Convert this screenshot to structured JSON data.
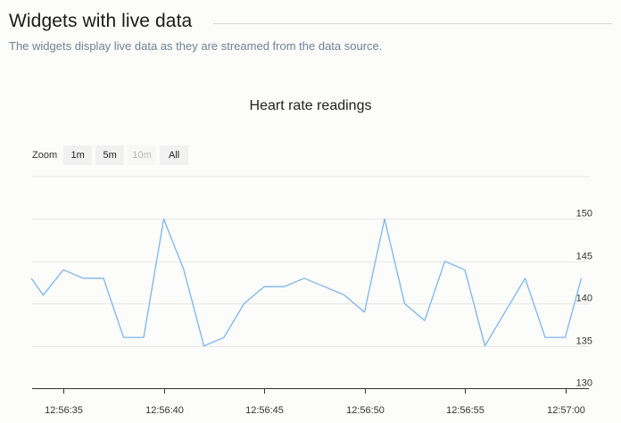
{
  "header": {
    "title": "Widgets with live data",
    "subtitle": "The widgets display live data as they are streamed from the data source."
  },
  "zoom": {
    "label": "Zoom",
    "buttons": [
      {
        "label": "1m",
        "enabled": true
      },
      {
        "label": "5m",
        "enabled": true
      },
      {
        "label": "10m",
        "enabled": false
      },
      {
        "label": "All",
        "enabled": true
      }
    ]
  },
  "chart_data": {
    "type": "line",
    "title": "Heart rate readings",
    "xlabel": "",
    "ylabel": "",
    "ylim": [
      130,
      155
    ],
    "yticks": [
      130,
      135,
      140,
      145,
      150
    ],
    "xticks": [
      "12:56:35",
      "12:56:40",
      "12:56:45",
      "12:56:50",
      "12:56:55",
      "12:57:00"
    ],
    "grid": true,
    "y_axis_side": "right",
    "x": [
      "12:56:33.4",
      "12:56:34.0",
      "12:56:35.0",
      "12:56:36.0",
      "12:56:37.0",
      "12:56:38.0",
      "12:56:39.0",
      "12:56:40.0",
      "12:56:41.0",
      "12:56:42.0",
      "12:56:43.0",
      "12:56:44.0",
      "12:56:45.0",
      "12:56:46.0",
      "12:56:47.0",
      "12:56:48.0",
      "12:56:49.0",
      "12:56:50.0",
      "12:56:51.0",
      "12:56:52.0",
      "12:56:53.0",
      "12:56:54.0",
      "12:56:55.0",
      "12:56:56.0",
      "12:56:57.0",
      "12:56:58.0",
      "12:56:59.0",
      "12:57:00.0",
      "12:57:00.8"
    ],
    "series": [
      {
        "name": "",
        "color": "#7cb5ec",
        "values": [
          143,
          141,
          144,
          143,
          143,
          136,
          136,
          150,
          144,
          135,
          136,
          140,
          142,
          142,
          143,
          142,
          141,
          139,
          150,
          140,
          138,
          145,
          144,
          135,
          139,
          143,
          136,
          136,
          143
        ]
      }
    ]
  }
}
